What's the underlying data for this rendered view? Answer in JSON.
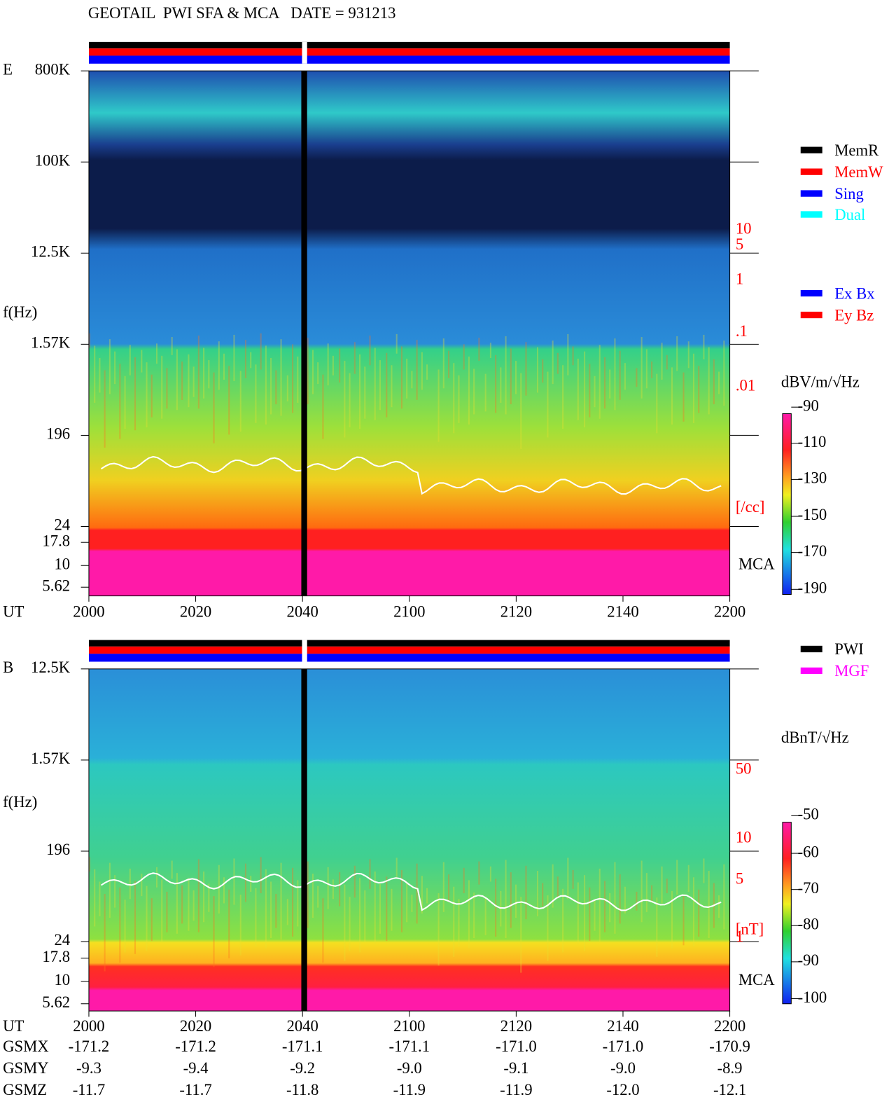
{
  "header": {
    "title": "GEOTAIL  PWI SFA & MCA   DATE = 931213"
  },
  "panels": [
    {
      "label": "E",
      "y_axis_title": "f(Hz)",
      "y_ticks": [
        "800K",
        "100K",
        "12.5K",
        "1.57K",
        "196",
        "24",
        "17.8",
        "10",
        "5.62"
      ],
      "x_axis_label": "UT",
      "x_ticks": [
        "2000",
        "2020",
        "2040",
        "2100",
        "2120",
        "2140",
        "2200"
      ],
      "right_ticks": [
        "10",
        "5",
        "1",
        ".1",
        ".01",
        "[/cc]"
      ],
      "mca_label": "MCA",
      "legend": [
        "MemR",
        "MemW",
        "Sing",
        "Dual",
        "Ex Bx",
        "Ey Bz"
      ],
      "colorbar": {
        "title": "dBV/m/√Hz",
        "ticks": [
          "-90",
          "-110",
          "-130",
          "-150",
          "-170",
          "-190"
        ]
      }
    },
    {
      "label": "B",
      "y_axis_title": "f(Hz)",
      "y_ticks": [
        "12.5K",
        "1.57K",
        "196",
        "24",
        "17.8",
        "10",
        "5.62"
      ],
      "x_axis_label": "UT",
      "x_ticks": [
        "2000",
        "2020",
        "2040",
        "2100",
        "2120",
        "2140",
        "2200"
      ],
      "right_ticks": [
        "50",
        "10",
        "5",
        "1",
        "[nT]"
      ],
      "mca_label": "MCA",
      "legend": [
        "PWI",
        "MGF"
      ],
      "colorbar": {
        "title": "dBnT/√Hz",
        "ticks": [
          "-50",
          "-60",
          "-70",
          "-80",
          "-90",
          "-100"
        ]
      }
    }
  ],
  "orbit": {
    "rows": [
      {
        "label": "GSMX",
        "values": [
          "-171.2",
          "-171.2",
          "-171.1",
          "-171.1",
          "-171.0",
          "-171.0",
          "-170.9"
        ]
      },
      {
        "label": "GSMY",
        "values": [
          "-9.3",
          "-9.4",
          "-9.2",
          "-9.0",
          "-9.1",
          "-9.0",
          "-8.9"
        ]
      },
      {
        "label": "GSMZ",
        "values": [
          "-11.7",
          "-11.7",
          "-11.8",
          "-11.9",
          "-11.9",
          "-12.0",
          "-12.1"
        ]
      }
    ]
  }
}
